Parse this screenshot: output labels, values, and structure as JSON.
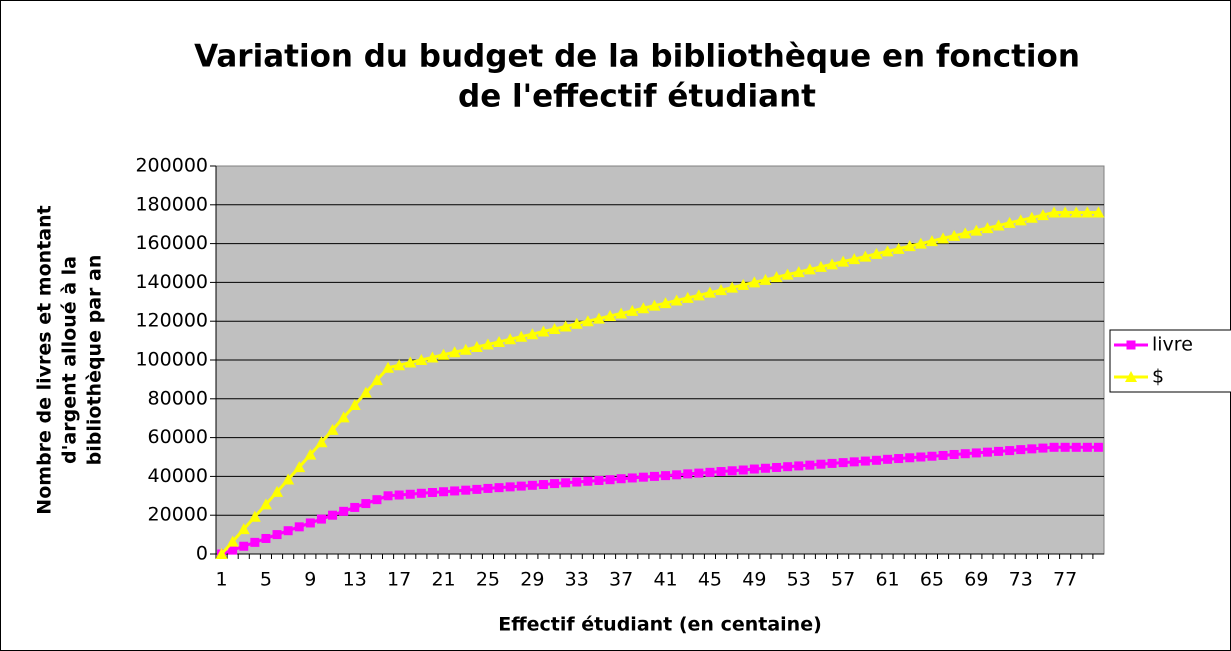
{
  "chart_data": {
    "type": "line",
    "title": [
      "Variation du budget de la bibliothèque en fonction",
      "de l'effectif étudiant"
    ],
    "x_label": "Effectif étudiant (en centaine)",
    "y_label": [
      "Nombre de livres et montant",
      "d'argent alloué à la",
      "bibliothèque par an"
    ],
    "categories": [
      1,
      null,
      null,
      null,
      5,
      null,
      null,
      null,
      9,
      null,
      null,
      null,
      13,
      null,
      null,
      null,
      17,
      null,
      null,
      null,
      21,
      null,
      null,
      null,
      25,
      null,
      null,
      null,
      29,
      null,
      null,
      null,
      33,
      null,
      null,
      null,
      37,
      null,
      null,
      null,
      41,
      null,
      null,
      null,
      45,
      null,
      null,
      null,
      49,
      null,
      null,
      null,
      53,
      null,
      null,
      null,
      57,
      null,
      null,
      null,
      61,
      null,
      null,
      null,
      65,
      null,
      null,
      null,
      69,
      null,
      null,
      null,
      73,
      null,
      null,
      null,
      77,
      null,
      null,
      null
    ],
    "series": [
      {
        "name": "livre",
        "color": "#ff00ff",
        "marker": "square",
        "values": [
          0,
          2000,
          4000,
          6000,
          8000,
          10000,
          12000,
          14000,
          16000,
          18000,
          20000,
          22000,
          24000,
          26000,
          28000,
          30000,
          30400,
          30800,
          31300,
          31700,
          32100,
          32500,
          32900,
          33300,
          33800,
          34200,
          34600,
          35000,
          35400,
          35800,
          36300,
          36700,
          37100,
          37500,
          37900,
          38300,
          38800,
          39200,
          39600,
          40000,
          40400,
          40800,
          41300,
          41700,
          42100,
          42500,
          42900,
          43300,
          43800,
          44200,
          44600,
          45000,
          45400,
          45800,
          46300,
          46700,
          47100,
          47500,
          47900,
          48300,
          48800,
          49200,
          49600,
          50000,
          50400,
          50800,
          51300,
          51700,
          52100,
          52500,
          52900,
          53300,
          53800,
          54200,
          54600,
          55000,
          55000,
          55000,
          55000,
          55000
        ]
      },
      {
        "name": "$",
        "color": "#ffff00",
        "marker": "triangle",
        "values": [
          0,
          6400,
          12800,
          19200,
          25600,
          32000,
          38400,
          44800,
          51200,
          57600,
          64000,
          70400,
          76800,
          83200,
          89600,
          96000,
          97300,
          98700,
          100000,
          101300,
          102700,
          104000,
          105300,
          106700,
          108000,
          109300,
          110700,
          112000,
          113300,
          114700,
          116000,
          117300,
          118700,
          120000,
          121300,
          122700,
          124000,
          125300,
          126700,
          128000,
          129300,
          130700,
          132000,
          133300,
          134700,
          136000,
          137300,
          138700,
          140000,
          141300,
          142700,
          144000,
          145300,
          146700,
          148000,
          149300,
          150700,
          152000,
          153300,
          154700,
          156000,
          157300,
          158700,
          160000,
          161300,
          162700,
          164000,
          165300,
          166700,
          168000,
          169300,
          170700,
          172000,
          173300,
          174700,
          176000,
          176000,
          176000,
          176000,
          176000
        ]
      }
    ],
    "ylim": [
      0,
      200000
    ],
    "yticks": [
      0,
      20000,
      40000,
      60000,
      80000,
      100000,
      120000,
      140000,
      160000,
      180000,
      200000
    ],
    "grid": true,
    "legend": "right"
  }
}
